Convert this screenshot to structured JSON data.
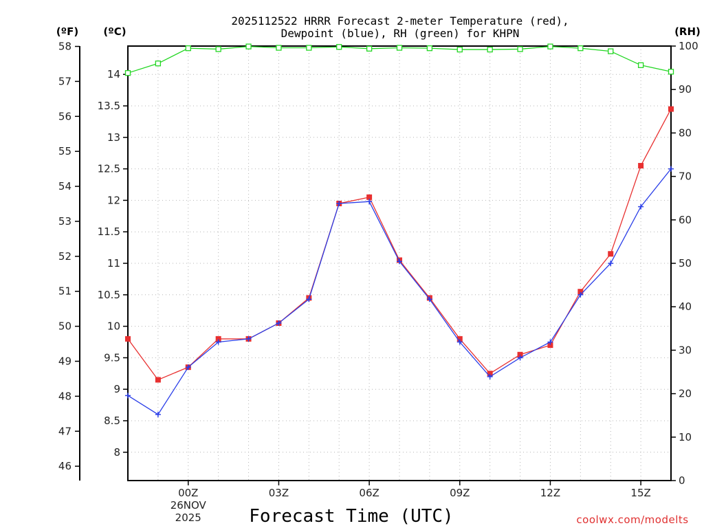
{
  "chart_data": {
    "type": "line",
    "title_line1": "2025112522 HRRR Forecast 2-meter Temperature (red),",
    "title_line2": "Dewpoint (blue), RH (green) for KHPN",
    "left_unit_f": "(ºF)",
    "left_unit_c": "(ºC)",
    "right_unit": "(RH)",
    "xlabel": "Forecast Time (UTC)",
    "credit": "coolwx.com/modelts",
    "x_range": [
      -2,
      16
    ],
    "x_ticks": [
      {
        "x": 0,
        "label": "00Z"
      },
      {
        "x": 3,
        "label": "03Z"
      },
      {
        "x": 6,
        "label": "06Z"
      },
      {
        "x": 9,
        "label": "09Z"
      },
      {
        "x": 12,
        "label": "12Z"
      },
      {
        "x": 15,
        "label": "15Z"
      }
    ],
    "date_label": [
      "26NOV",
      "2025"
    ],
    "date_label_x": 0,
    "y_range_c": [
      7.55,
      14.45
    ],
    "y_ticks_c": [
      "8",
      "8.5",
      "9",
      "9.5",
      "10",
      "10.5",
      "11",
      "11.5",
      "12",
      "12.5",
      "13",
      "13.5",
      "14"
    ],
    "y_ticks_f": [
      "46",
      "47",
      "48",
      "49",
      "50",
      "51",
      "52",
      "53",
      "54",
      "55",
      "56",
      "57",
      "58"
    ],
    "y_range_rh": [
      0,
      100
    ],
    "y_ticks_rh": [
      "0",
      "10",
      "20",
      "30",
      "40",
      "50",
      "60",
      "70",
      "80",
      "90",
      "100"
    ],
    "x": [
      -2,
      -1,
      0,
      1,
      2,
      3,
      4,
      5,
      6,
      7,
      8,
      9,
      10,
      11,
      12,
      13,
      14,
      15,
      16
    ],
    "series": [
      {
        "name": "Temperature",
        "color": "#e83030",
        "marker": "filled-square",
        "values": [
          9.8,
          9.15,
          9.35,
          9.8,
          9.8,
          10.05,
          10.45,
          11.95,
          12.05,
          11.05,
          10.45,
          9.8,
          9.25,
          9.55,
          9.7,
          10.55,
          11.15,
          12.55,
          13.45
        ]
      },
      {
        "name": "Dewpoint",
        "color": "#2a3ee8",
        "marker": "plus",
        "values": [
          8.9,
          8.6,
          9.35,
          9.75,
          9.8,
          10.05,
          10.43,
          11.95,
          11.98,
          11.03,
          10.43,
          9.75,
          9.2,
          9.5,
          9.75,
          10.5,
          11.0,
          11.9,
          12.5
        ]
      },
      {
        "name": "RH",
        "color": "#22d622",
        "marker": "open-square",
        "axis": "rh",
        "values": [
          93.8,
          96,
          99.5,
          99.3,
          99.9,
          99.6,
          99.6,
          99.8,
          99.4,
          99.6,
          99.5,
          99.2,
          99.2,
          99.3,
          99.9,
          99.5,
          98.8,
          95.6,
          94.1
        ]
      }
    ]
  }
}
